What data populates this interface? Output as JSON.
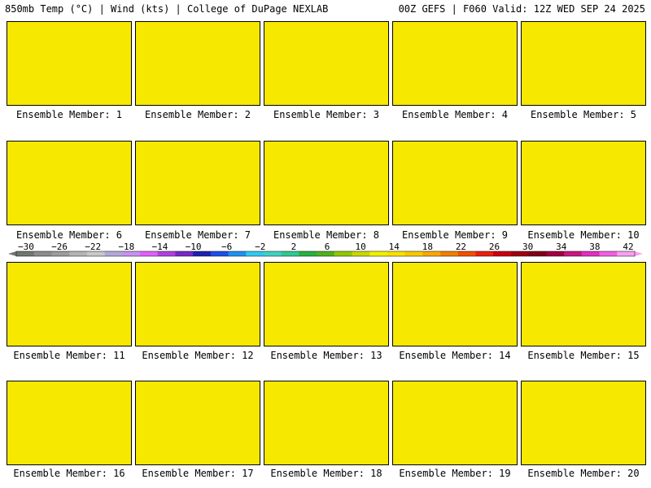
{
  "header": {
    "left": "850mb Temp (°C) | Wind (kts) | College of DuPage NEXLAB",
    "right": "00Z GEFS | F060 Valid: 12Z WED SEP 24 2025"
  },
  "member_label_prefix": "Ensemble Member:",
  "members": [
    "1",
    "2",
    "3",
    "4",
    "5",
    "6",
    "7",
    "8",
    "9",
    "10",
    "11",
    "12",
    "13",
    "14",
    "15",
    "16",
    "17",
    "18",
    "19",
    "20"
  ],
  "colorbar": {
    "tick_labels": [
      "−30",
      "−26",
      "−22",
      "−18",
      "−14",
      "−10",
      "−6",
      "−2",
      "2",
      "6",
      "10",
      "14",
      "18",
      "22",
      "26",
      "30",
      "34",
      "38",
      "42"
    ],
    "colors": [
      "#707870",
      "#8c8c8c",
      "#9c9c9c",
      "#b4b4b4",
      "#c8c8c8",
      "#b4a8d8",
      "#c890f0",
      "#e060f8",
      "#b040e0",
      "#7828c8",
      "#2020b0",
      "#1c50e8",
      "#2090f0",
      "#30c8f0",
      "#40d0c0",
      "#30c890",
      "#28b040",
      "#50b020",
      "#90c800",
      "#c8d800",
      "#f0f000",
      "#f8e000",
      "#f8c800",
      "#f8a800",
      "#f08000",
      "#f05000",
      "#e82010",
      "#c80010",
      "#a00010",
      "#800018",
      "#a00040",
      "#c81880",
      "#e030c0",
      "#f060e0",
      "#f8a0f0"
    ]
  }
}
